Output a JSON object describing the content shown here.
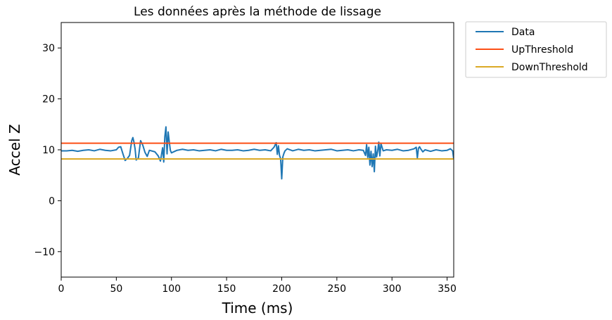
{
  "chart_data": {
    "type": "line",
    "title": "Les données après la méthode de lissage",
    "xlabel": "Time (ms)",
    "ylabel": "Accel Z",
    "xlim": [
      0,
      356
    ],
    "ylim": [
      -15,
      35
    ],
    "xticks": [
      0,
      50,
      100,
      150,
      200,
      250,
      300,
      350
    ],
    "yticks": [
      -10,
      0,
      10,
      20,
      30
    ],
    "grid": false,
    "legend_position": "outside-top-right",
    "series": [
      {
        "name": "Data",
        "color": "#1f77b4",
        "x": [
          0,
          5,
          10,
          15,
          20,
          25,
          30,
          35,
          40,
          45,
          50,
          52,
          54,
          56,
          58,
          60,
          62,
          64,
          65,
          66,
          67,
          68,
          70,
          72,
          74,
          76,
          78,
          80,
          85,
          88,
          90,
          92,
          93,
          94,
          95,
          96,
          97,
          98,
          99,
          100,
          105,
          110,
          115,
          120,
          125,
          130,
          135,
          140,
          145,
          150,
          155,
          160,
          165,
          170,
          175,
          180,
          185,
          190,
          193,
          195,
          196,
          197,
          198,
          199,
          200,
          201,
          202,
          203,
          205,
          210,
          215,
          220,
          225,
          230,
          235,
          240,
          245,
          250,
          255,
          260,
          265,
          270,
          274,
          276,
          277,
          278,
          279,
          280,
          281,
          282,
          283,
          284,
          285,
          286,
          287,
          288,
          289,
          290,
          292,
          295,
          300,
          305,
          310,
          315,
          320,
          322,
          323,
          324,
          325,
          326,
          328,
          330,
          335,
          340,
          345,
          350,
          353,
          355,
          356
        ],
        "y": [
          9.8,
          9.8,
          9.9,
          9.7,
          9.9,
          10.0,
          9.8,
          10.1,
          9.9,
          9.8,
          10.0,
          10.5,
          10.6,
          9.2,
          7.9,
          8.3,
          8.9,
          11.8,
          12.4,
          11.5,
          10.2,
          8.0,
          8.4,
          11.8,
          10.9,
          9.5,
          8.7,
          9.9,
          9.6,
          8.8,
          7.8,
          10.4,
          7.6,
          12.6,
          14.5,
          9.2,
          13.5,
          11.6,
          9.9,
          9.4,
          9.9,
          10.1,
          9.9,
          10.0,
          9.8,
          9.9,
          10.0,
          9.8,
          10.1,
          9.9,
          9.9,
          10.0,
          9.8,
          9.9,
          10.1,
          9.9,
          10.0,
          9.8,
          10.5,
          11.4,
          9.1,
          10.8,
          8.9,
          8.3,
          4.3,
          8.6,
          9.3,
          9.8,
          10.2,
          9.8,
          10.1,
          9.9,
          10.0,
          9.8,
          9.9,
          10.0,
          10.1,
          9.8,
          9.9,
          10.0,
          9.8,
          10.0,
          9.9,
          8.9,
          11.0,
          8.5,
          10.5,
          7.0,
          9.7,
          6.7,
          9.2,
          5.7,
          10.7,
          8.6,
          9.7,
          11.5,
          8.8,
          11.2,
          9.8,
          10.0,
          9.9,
          10.1,
          9.8,
          9.9,
          10.2,
          10.5,
          8.4,
          10.3,
          10.6,
          10.2,
          9.6,
          10.0,
          9.7,
          10.0,
          9.8,
          9.9,
          10.2,
          9.8,
          8.2
        ]
      },
      {
        "name": "UpThreshold",
        "color": "#fc4f16",
        "x": [
          0,
          356
        ],
        "y": [
          11.3,
          11.3
        ]
      },
      {
        "name": "DownThreshold",
        "color": "#dba926",
        "x": [
          0,
          356
        ],
        "y": [
          8.2,
          8.2
        ]
      }
    ]
  }
}
